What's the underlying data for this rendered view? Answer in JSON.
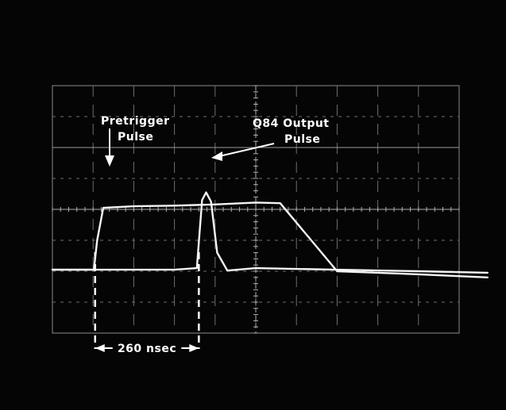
{
  "chart_data": {
    "type": "line",
    "title": "",
    "xlabel": "",
    "ylabel": "",
    "grid": true,
    "graticule": {
      "divisions_x": 10,
      "divisions_y": 8
    },
    "xlim": [
      0,
      10
    ],
    "ylim": [
      -4,
      4
    ],
    "series": [
      {
        "x": [
          0,
          1.02,
          1.1,
          1.25,
          2,
          3,
          4,
          5,
          5.6,
          7,
          8,
          9,
          10.7
        ],
        "y": [
          -1.95,
          -1.95,
          -1.0,
          0.05,
          0.1,
          0.12,
          0.16,
          0.22,
          0.2,
          -2.0,
          -2.05,
          -2.1,
          -2.2
        ]
      },
      {
        "x": [
          0,
          3,
          3.55,
          3.68,
          3.78,
          3.9,
          4.05,
          4.3,
          5,
          7,
          9,
          10.7
        ],
        "y": [
          -1.95,
          -1.95,
          -1.9,
          0.3,
          0.55,
          0.25,
          -1.4,
          -1.98,
          -1.9,
          -1.95,
          -2.0,
          -2.05
        ]
      }
    ],
    "annotations": [
      {
        "id": "pretrigger",
        "lines": [
          "Pretrigger",
          "Pulse"
        ]
      },
      {
        "id": "q84",
        "lines": [
          "Q84 Output",
          "Pulse"
        ]
      },
      {
        "id": "interval",
        "text": "260 nsec"
      }
    ]
  }
}
